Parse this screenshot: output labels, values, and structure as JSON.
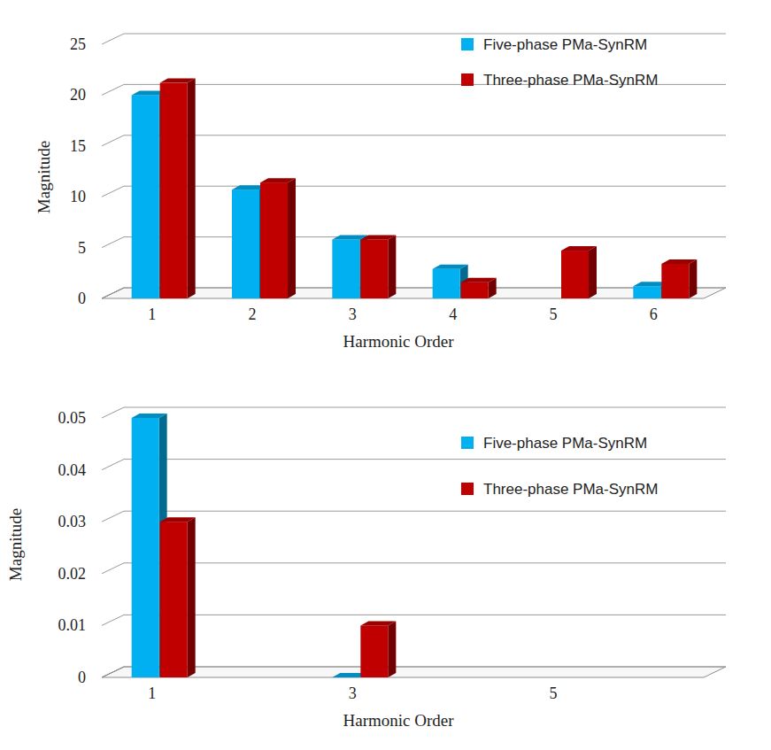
{
  "chart_data": [
    {
      "type": "bar",
      "xlabel": "Harmonic Order",
      "ylabel": "Magnitude",
      "categories": [
        "1",
        "2",
        "3",
        "4",
        "5",
        "6"
      ],
      "series": [
        {
          "name": "Five-phase PMa-SynRM",
          "color": "#00b0f0",
          "values": [
            20,
            10.7,
            5.8,
            2.9,
            null,
            1.2
          ]
        },
        {
          "name": "Three-phase PMa-SynRM",
          "color": "#c00000",
          "values": [
            21.2,
            11.4,
            5.8,
            1.6,
            4.7,
            3.4
          ]
        }
      ],
      "ylim": [
        0,
        25
      ],
      "yticks": [
        0,
        5,
        10,
        15,
        20,
        25
      ],
      "grid": true,
      "legend": "upper right"
    },
    {
      "type": "bar",
      "xlabel": "Harmonic Order",
      "ylabel": "Magnitude",
      "categories": [
        "1",
        null,
        "3",
        null,
        "5",
        null
      ],
      "series": [
        {
          "name": "Five-phase PMa-SynRM",
          "color": "#00b0f0",
          "values": [
            0.05,
            null,
            0,
            null,
            null,
            null
          ]
        },
        {
          "name": "Three-phase PMa-SynRM",
          "color": "#c00000",
          "values": [
            0.03,
            null,
            0.01,
            null,
            null,
            null
          ]
        }
      ],
      "ylim": [
        0,
        0.05
      ],
      "yticks": [
        0,
        0.01,
        0.02,
        0.03,
        0.04,
        0.05
      ],
      "grid": true,
      "legend": "upper right"
    }
  ]
}
